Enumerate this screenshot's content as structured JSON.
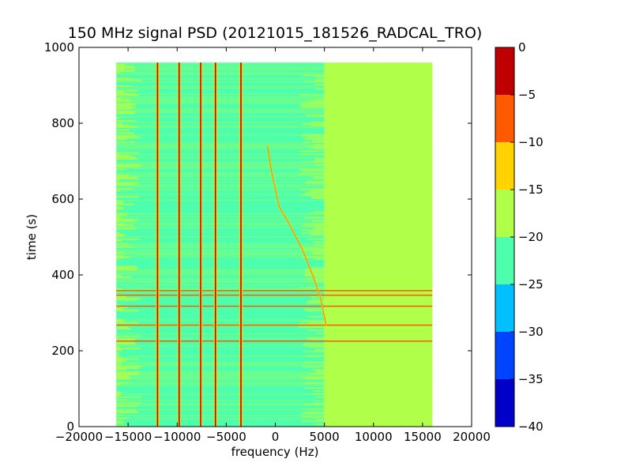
{
  "chart_data": {
    "type": "heatmap",
    "title": "150 MHz signal PSD (20121015_181526_RADCAL_TRO)",
    "xlabel": "frequency (Hz)",
    "ylabel": "time (s)",
    "xlim": [
      -20000,
      20000
    ],
    "ylim": [
      0,
      1000
    ],
    "xticks": [
      -20000,
      -15000,
      -10000,
      -5000,
      0,
      5000,
      10000,
      15000,
      20000
    ],
    "xtick_labels": [
      "−20000",
      "−15000",
      "−10000",
      "−5000",
      "0",
      "5000",
      "10000",
      "15000",
      "20000"
    ],
    "yticks": [
      0,
      200,
      400,
      600,
      800,
      1000
    ],
    "ytick_labels": [
      "0",
      "200",
      "400",
      "600",
      "800",
      "1000"
    ],
    "data_extent": {
      "x": [
        -16200,
        16000
      ],
      "y": [
        0,
        960
      ]
    },
    "colorbar": {
      "range": [
        -40,
        0
      ],
      "ticks": [
        0,
        -5,
        -10,
        -15,
        -20,
        -25,
        -30,
        -35,
        -40
      ],
      "tick_labels": [
        "0",
        "−5",
        "−10",
        "−15",
        "−20",
        "−25",
        "−30",
        "−35",
        "−40"
      ],
      "levels": [
        {
          "from": -40,
          "to": -35,
          "color": "#0000c8"
        },
        {
          "from": -35,
          "to": -30,
          "color": "#0044ff"
        },
        {
          "from": -30,
          "to": -25,
          "color": "#00c0ff"
        },
        {
          "from": -25,
          "to": -20,
          "color": "#4dffad"
        },
        {
          "from": -20,
          "to": -15,
          "color": "#b0ff48"
        },
        {
          "from": -15,
          "to": -10,
          "color": "#ffd200"
        },
        {
          "from": -10,
          "to": -5,
          "color": "#ff5a00"
        },
        {
          "from": -5,
          "to": 0,
          "color": "#c00000"
        }
      ]
    },
    "regions": [
      {
        "x": [
          -16200,
          5000
        ],
        "y": [
          0,
          960
        ],
        "level_db": -22.5,
        "color": "#4dffad"
      },
      {
        "x": [
          5000,
          16000
        ],
        "y": [
          0,
          960
        ],
        "level_db": -17.5,
        "color": "#b0ff48"
      }
    ],
    "vertical_lines_hz": [
      -12000,
      -9800,
      -7600,
      -6100,
      -3500
    ],
    "horizontal_lines_s": [
      225,
      267,
      317,
      346,
      358
    ],
    "chirp": {
      "points": [
        [
          -800,
          740
        ],
        [
          -300,
          660
        ],
        [
          400,
          580
        ],
        [
          1500,
          530
        ],
        [
          2700,
          470
        ],
        [
          3800,
          400
        ],
        [
          4600,
          340
        ],
        [
          5200,
          265
        ]
      ],
      "color": "#ffd200"
    }
  }
}
